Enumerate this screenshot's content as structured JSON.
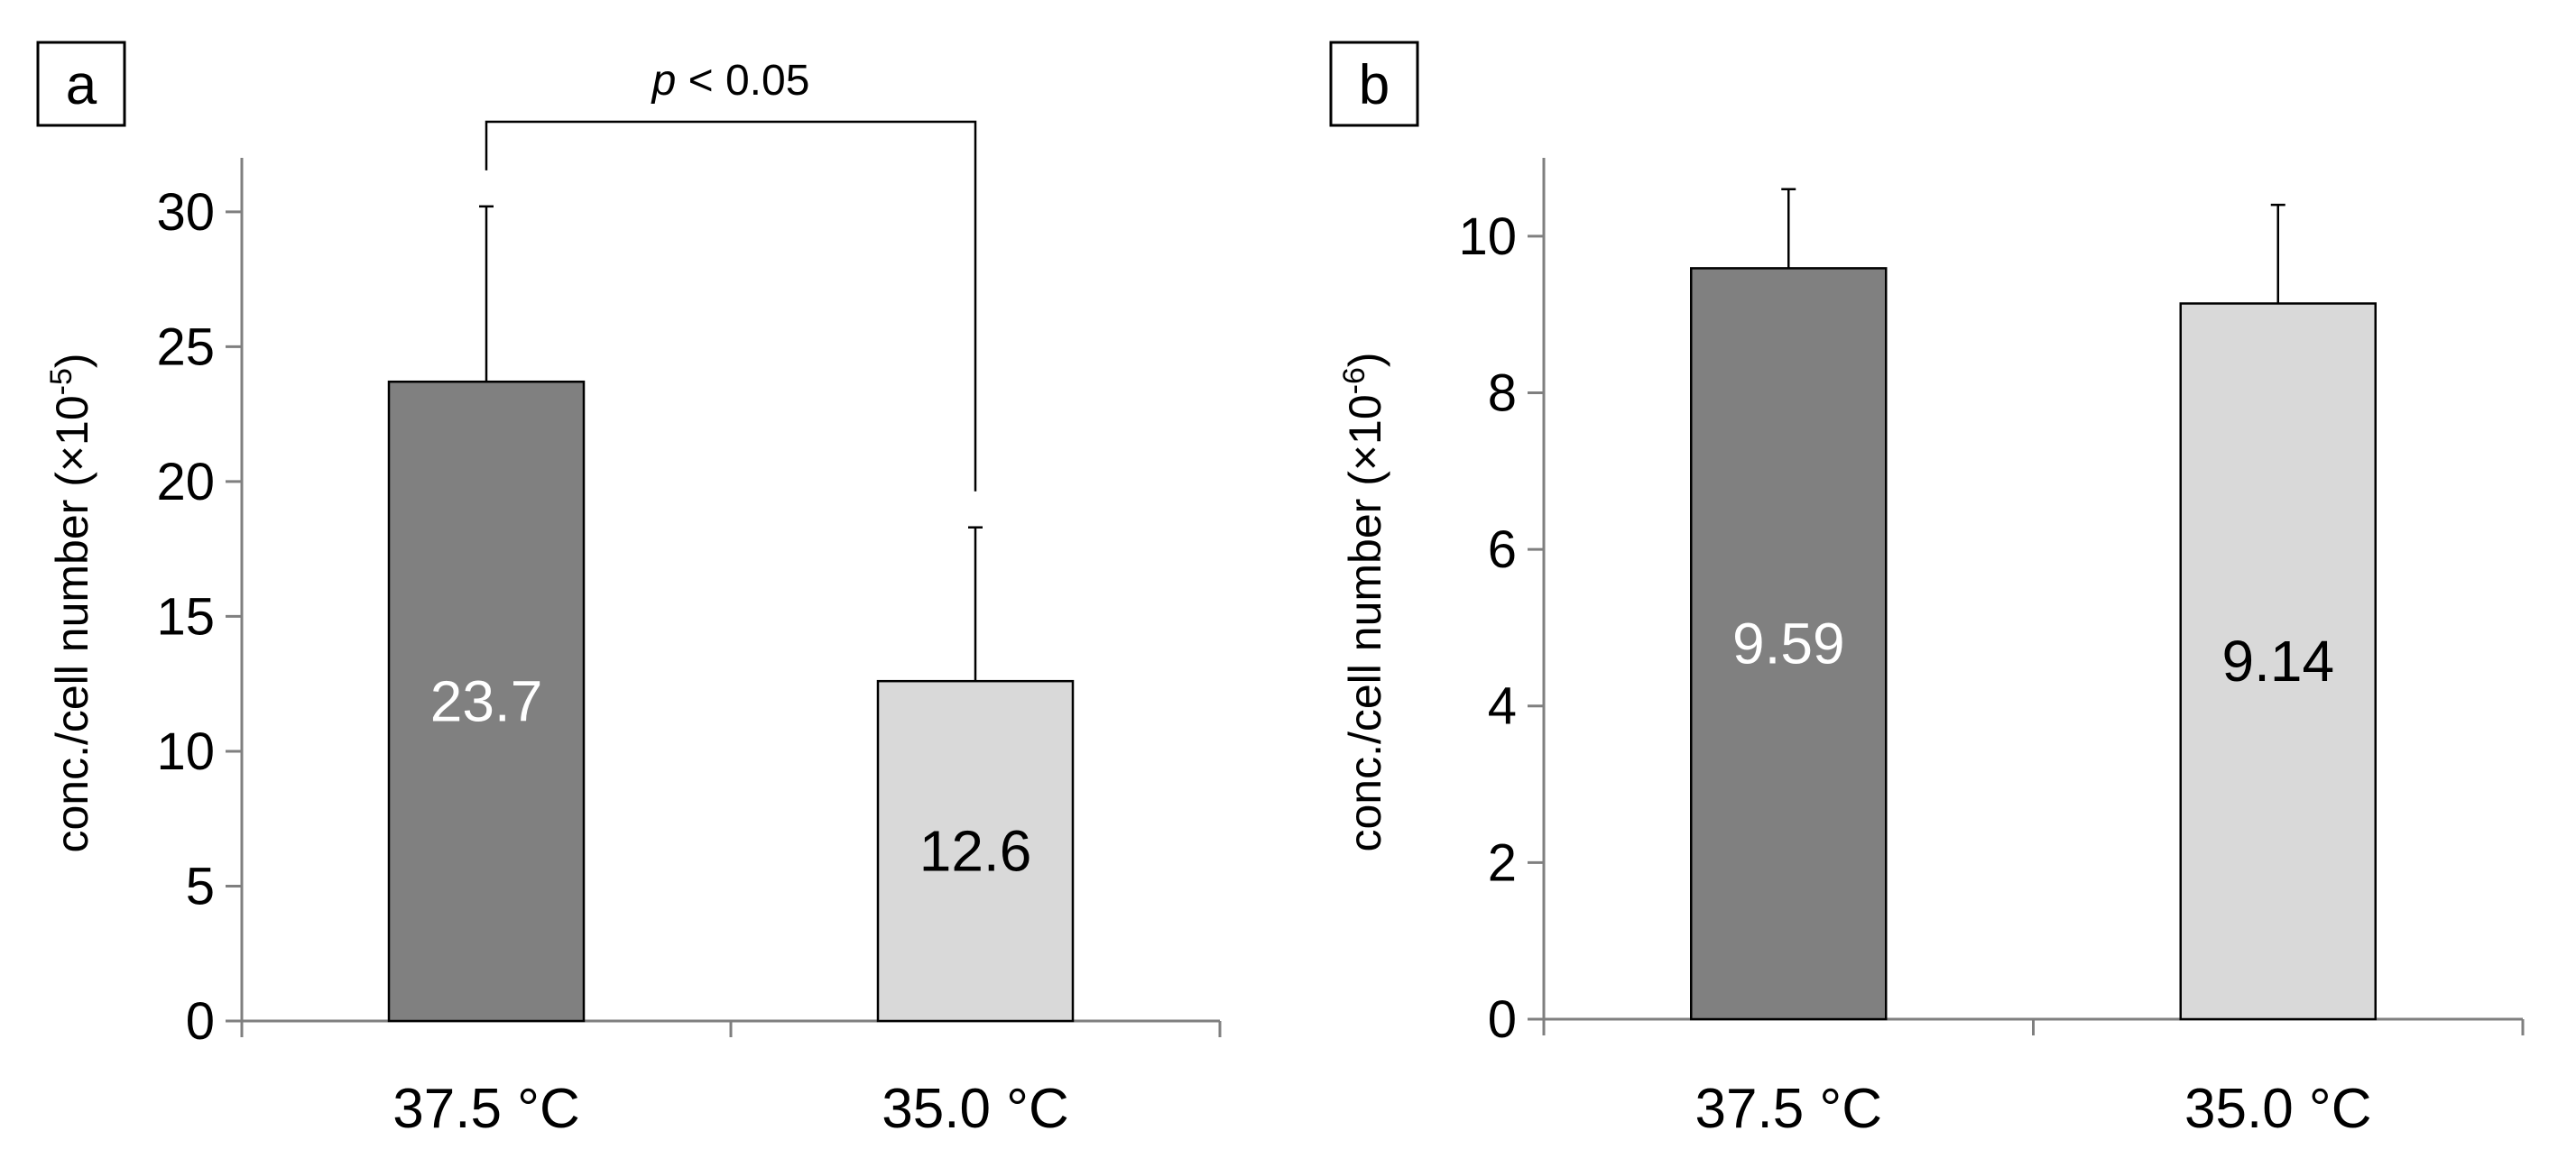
{
  "chart_data": [
    {
      "panel_label": "a",
      "type": "bar",
      "categories": [
        "37.5 °C",
        "35.0 °C"
      ],
      "values": [
        23.7,
        12.6
      ],
      "value_labels": [
        "23.7",
        "12.6"
      ],
      "error_upper": [
        30.2,
        18.3
      ],
      "colors": [
        "#808080",
        "#d9d9d9"
      ],
      "value_label_colors": [
        "#ffffff",
        "#000000"
      ],
      "ylabel": "conc./cell number (×10",
      "ylabel_exponent": "-5",
      "ylabel_close": ")",
      "ylim": [
        0,
        32
      ],
      "yticks": [
        0,
        5,
        10,
        15,
        20,
        25,
        30
      ],
      "significance": {
        "label_italic": "p",
        "label_rest": " < 0.05",
        "between": [
          0,
          1
        ]
      },
      "grid": false
    },
    {
      "panel_label": "b",
      "type": "bar",
      "categories": [
        "37.5 °C",
        "35.0 °C"
      ],
      "values": [
        9.59,
        9.14
      ],
      "value_labels": [
        "9.59",
        "9.14"
      ],
      "error_upper": [
        10.6,
        10.4
      ],
      "colors": [
        "#808080",
        "#d9d9d9"
      ],
      "value_label_colors": [
        "#ffffff",
        "#000000"
      ],
      "ylabel": "conc./cell number (×10",
      "ylabel_exponent": "-6",
      "ylabel_close": ")",
      "ylim": [
        0,
        11
      ],
      "yticks": [
        0,
        2,
        4,
        6,
        8,
        10
      ],
      "grid": false
    }
  ]
}
